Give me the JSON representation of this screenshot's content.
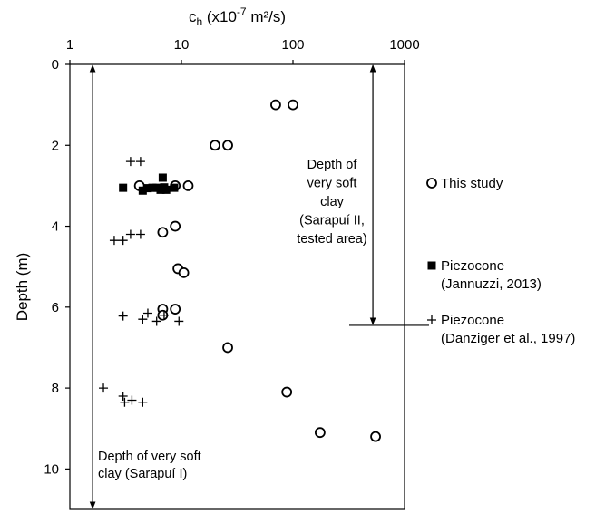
{
  "chart_data": {
    "type": "scatter",
    "title": "",
    "xlabel": "c_h (x10^-7 m²/s)",
    "xlabel_parts": {
      "main": "c",
      "sub": "h",
      "pre": " (x10",
      "sup": "-7",
      "post": " m²/s)"
    },
    "ylabel": "Depth (m)",
    "x_scale": "log",
    "x_axis_position": "top",
    "xlim": [
      1,
      1000
    ],
    "ylim": [
      0,
      11
    ],
    "y_inverted": true,
    "x_ticks": [
      "1",
      "10",
      "100",
      "1000"
    ],
    "y_ticks": [
      "0",
      "2",
      "4",
      "6",
      "8",
      "10"
    ],
    "grid": false,
    "legend_position": "right",
    "series": [
      {
        "name": "This study",
        "marker": "open-circle",
        "points": [
          [
            70,
            1.0
          ],
          [
            100,
            1.0
          ],
          [
            20,
            2.0
          ],
          [
            26,
            2.0
          ],
          [
            4.2,
            3.0
          ],
          [
            8.8,
            3.0
          ],
          [
            11.5,
            3.0
          ],
          [
            8.8,
            4.0
          ],
          [
            6.8,
            4.15
          ],
          [
            9.3,
            5.05
          ],
          [
            10.5,
            5.15
          ],
          [
            6.8,
            6.05
          ],
          [
            8.8,
            6.05
          ],
          [
            6.8,
            6.2
          ],
          [
            26,
            7.0
          ],
          [
            88,
            8.1
          ],
          [
            175,
            9.1
          ],
          [
            550,
            9.2
          ]
        ]
      },
      {
        "name": "Piezocone",
        "name_ref": "(Jannuzzi, 2013)",
        "marker": "filled-square",
        "points": [
          [
            3.0,
            3.05
          ],
          [
            4.5,
            3.12
          ],
          [
            5.0,
            3.06
          ],
          [
            5.5,
            3.05
          ],
          [
            6.0,
            3.05
          ],
          [
            6.5,
            3.1
          ],
          [
            7.0,
            3.04
          ],
          [
            7.3,
            3.1
          ],
          [
            6.8,
            2.8
          ],
          [
            8.6,
            3.05
          ]
        ]
      },
      {
        "name": "Piezocone",
        "name_ref": "(Danziger et al., 1997)",
        "marker": "plus",
        "points": [
          [
            3.5,
            2.4
          ],
          [
            4.3,
            2.4
          ],
          [
            2.5,
            4.35
          ],
          [
            3.0,
            4.35
          ],
          [
            3.5,
            4.2
          ],
          [
            4.3,
            4.2
          ],
          [
            5.0,
            6.15
          ],
          [
            4.5,
            6.3
          ],
          [
            3.0,
            6.22
          ],
          [
            6.0,
            6.35
          ],
          [
            7.0,
            6.2
          ],
          [
            9.5,
            6.35
          ],
          [
            2.0,
            8.0
          ],
          [
            3.0,
            8.2
          ],
          [
            3.1,
            8.35
          ],
          [
            3.6,
            8.3
          ],
          [
            4.5,
            8.35
          ]
        ]
      }
    ],
    "annotations": [
      {
        "id": "sarapui-1",
        "lines": [
          "Depth of very soft",
          "clay (Sarapuí I)"
        ],
        "arrow_x": 1.6,
        "arrow_y": [
          0,
          11
        ]
      },
      {
        "id": "sarapui-2",
        "lines": [
          "Depth of",
          "very soft",
          "clay",
          "(Sarapuí II,",
          "tested area)"
        ],
        "arrow_x": 520,
        "arrow_y": [
          0,
          6.45
        ],
        "marker_line_y": 6.45
      }
    ]
  }
}
